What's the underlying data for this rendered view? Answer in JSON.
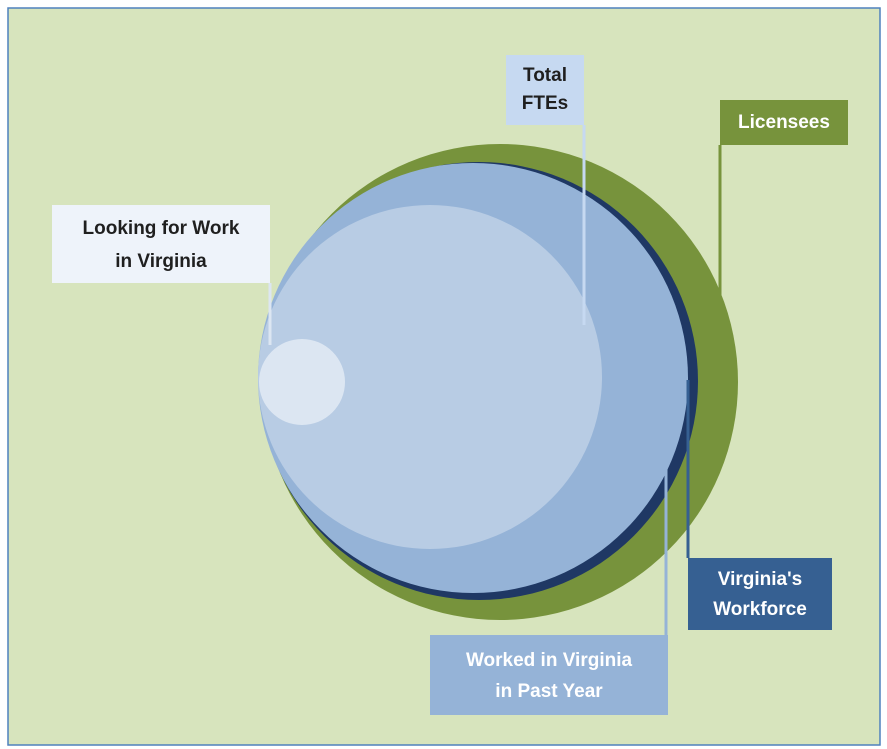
{
  "labels": {
    "total_ftes": [
      "Total",
      "FTEs"
    ],
    "licensees": [
      "Licensees"
    ],
    "looking_for_work": [
      "Looking for Work",
      "in Virginia"
    ],
    "virginias_workforce": [
      "Virginia's",
      "Workforce"
    ],
    "worked_in_virginia": [
      "Worked in Virginia",
      "in Past Year"
    ]
  }
}
